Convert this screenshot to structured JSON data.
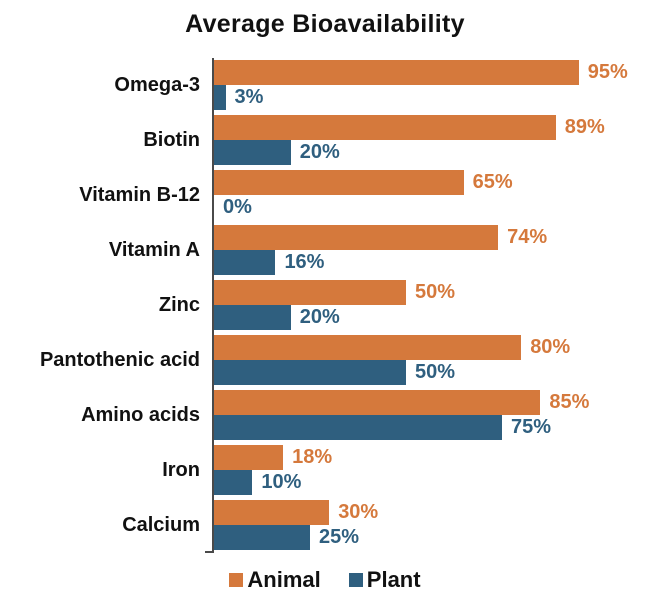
{
  "title": "Average Bioavailability",
  "chart_data": {
    "type": "bar",
    "orientation": "horizontal",
    "title": "Average Bioavailability",
    "xlabel": "",
    "ylabel": "",
    "xlim": [
      0,
      100
    ],
    "grid": false,
    "legend_position": "bottom",
    "value_suffix": "%",
    "axis_color": "#4a4a4a",
    "text_color": "#111111",
    "categories": [
      "Omega-3",
      "Biotin",
      "Vitamin B-12",
      "Vitamin A",
      "Zinc",
      "Pantothenic acid",
      "Amino acids",
      "Iron",
      "Calcium"
    ],
    "series": [
      {
        "name": "Animal",
        "color": "#d5793c",
        "values": [
          95,
          89,
          65,
          74,
          50,
          80,
          85,
          18,
          30
        ]
      },
      {
        "name": "Plant",
        "color": "#2f5f7f",
        "values": [
          3,
          20,
          0,
          16,
          20,
          50,
          75,
          10,
          25
        ]
      }
    ]
  },
  "legend": {
    "items": [
      {
        "label": "Animal",
        "color": "#d5793c"
      },
      {
        "label": "Plant",
        "color": "#2f5f7f"
      }
    ]
  }
}
